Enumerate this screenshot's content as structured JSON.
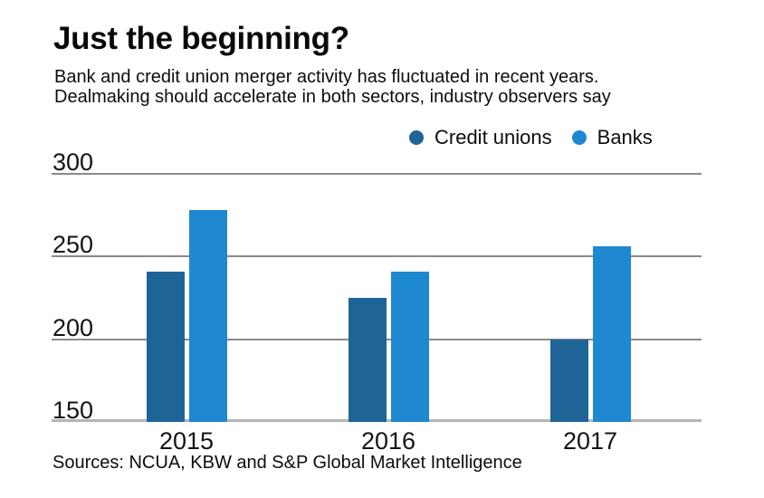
{
  "header": {
    "title": "Just the beginning?",
    "subtitle_lines": [
      "Bank and credit union merger activity has fluctuated in recent years.",
      "Dealmaking should accelerate in both sectors, industry observers say"
    ]
  },
  "legend": {
    "items": [
      {
        "label": "Credit unions",
        "color": "#1f6496"
      },
      {
        "label": "Banks",
        "color": "#1e88d1"
      }
    ]
  },
  "chart_data": {
    "type": "bar",
    "title": "Just the beginning?",
    "categories": [
      "2015",
      "2016",
      "2017"
    ],
    "series": [
      {
        "name": "Credit unions",
        "color": "#1f6496",
        "values": [
          241,
          225,
          200
        ]
      },
      {
        "name": "Banks",
        "color": "#1e88d1",
        "values": [
          278,
          241,
          256
        ]
      }
    ],
    "ylim": [
      150,
      300
    ],
    "yticks": [
      300,
      250,
      200,
      150
    ],
    "grid": true,
    "legend_position": "top-right",
    "xlabel": "",
    "ylabel": ""
  },
  "footer": {
    "source": "Sources: NCUA, KBW and S&P Global Market Intelligence"
  },
  "colors": {
    "credit_unions": "#1f6496",
    "banks": "#1e88d1",
    "gridline": "#8a8a8a",
    "axis_line": "#b5b5b5",
    "text": "#0d0d0d"
  }
}
